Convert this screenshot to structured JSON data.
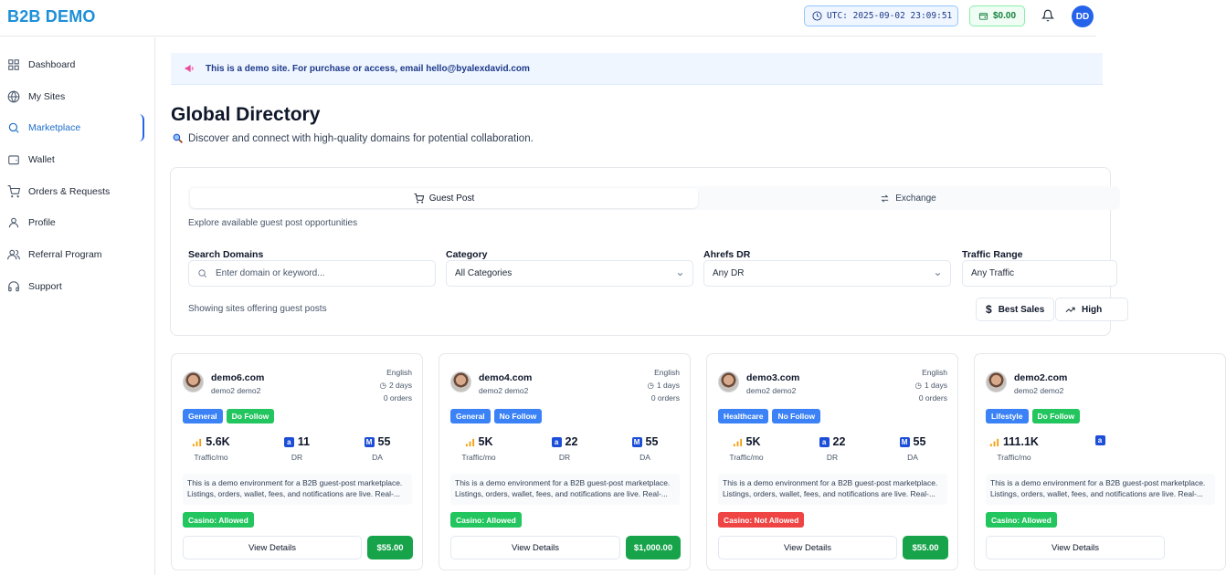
{
  "brand": "B2B DEMO",
  "topbar": {
    "utc": "UTC: 2025-09-02 23:09:51",
    "balance": "$0.00",
    "avatar_initials": "DD"
  },
  "sidebar": {
    "items": [
      {
        "label": "Dashboard",
        "icon": "grid-icon"
      },
      {
        "label": "My Sites",
        "icon": "globe-icon"
      },
      {
        "label": "Marketplace",
        "icon": "search-icon",
        "active": true
      },
      {
        "label": "Wallet",
        "icon": "wallet-icon"
      },
      {
        "label": "Orders & Requests",
        "icon": "cart-icon"
      },
      {
        "label": "Profile",
        "icon": "user-icon"
      },
      {
        "label": "Referral Program",
        "icon": "users-icon"
      },
      {
        "label": "Support",
        "icon": "headset-icon"
      }
    ]
  },
  "banner": {
    "text": "This is a demo site. For purchase or access, email hello@byalexdavid.com"
  },
  "page": {
    "title": "Global Directory",
    "subtitle": "Discover and connect with high-quality domains for potential collaboration."
  },
  "tabs": [
    {
      "label": "Guest Post",
      "active": true
    },
    {
      "label": "Exchange",
      "active": false
    }
  ],
  "tab_hint": "Explore available guest post opportunities",
  "filters": {
    "search": {
      "label": "Search Domains",
      "placeholder": "Enter domain or keyword..."
    },
    "category": {
      "label": "Category",
      "value": "All Categories"
    },
    "dr": {
      "label": "Ahrefs DR",
      "value": "Any DR"
    },
    "traffic": {
      "label": "Traffic Range",
      "value": "Any Traffic"
    }
  },
  "showing_text": "Showing sites offering guest posts",
  "sort_buttons": {
    "best_sales": "Best Sales",
    "high": "High"
  },
  "cards": [
    {
      "domain": "demo6.com",
      "owner": "demo2 demo2",
      "language": "English",
      "days": "2 days",
      "orders": "0 orders",
      "category": "General",
      "follow": "Do Follow",
      "traffic": "5.6K",
      "dr": "11",
      "da": "55",
      "description": "This is a demo environment for a B2B guest-post marketplace. Listings, orders, wallet, fees, and notifications are live. Real-...",
      "casino": "Casino: Allowed",
      "casino_allowed": true,
      "view": "View Details",
      "price": "$55.00"
    },
    {
      "domain": "demo4.com",
      "owner": "demo2 demo2",
      "language": "English",
      "days": "1 days",
      "orders": "0 orders",
      "category": "General",
      "follow": "No Follow",
      "traffic": "5K",
      "dr": "22",
      "da": "55",
      "description": "This is a demo environment for a B2B guest-post marketplace. Listings, orders, wallet, fees, and notifications are live. Real-...",
      "casino": "Casino: Allowed",
      "casino_allowed": true,
      "view": "View Details",
      "price": "$1,000.00"
    },
    {
      "domain": "demo3.com",
      "owner": "demo2 demo2",
      "language": "English",
      "days": "1 days",
      "orders": "0 orders",
      "category": "Healthcare",
      "follow": "No Follow",
      "traffic": "5K",
      "dr": "22",
      "da": "55",
      "description": "This is a demo environment for a B2B guest-post marketplace. Listings, orders, wallet, fees, and notifications are live. Real-...",
      "casino": "Casino: Not Allowed",
      "casino_allowed": false,
      "view": "View Details",
      "price": "$55.00"
    },
    {
      "domain": "demo2.com",
      "owner": "demo2 demo2",
      "language": "",
      "days": "",
      "orders": "",
      "category": "Lifestyle",
      "follow": "Do Follow",
      "traffic": "111.1K",
      "dr": "",
      "da": "",
      "description": "This is a demo environment for a B2B guest-post marketplace. Listings, orders, wallet, fees, and notifications are live. Real-...",
      "casino": "Casino: Allowed",
      "casino_allowed": true,
      "view": "View Details",
      "price": ""
    }
  ],
  "metric_labels": {
    "traffic": "Traffic/mo",
    "dr": "DR",
    "da": "DA"
  },
  "colors": {
    "accent": "#2563eb",
    "brand": "#1d8fd8",
    "success": "#16a34a",
    "danger": "#ef4444"
  }
}
